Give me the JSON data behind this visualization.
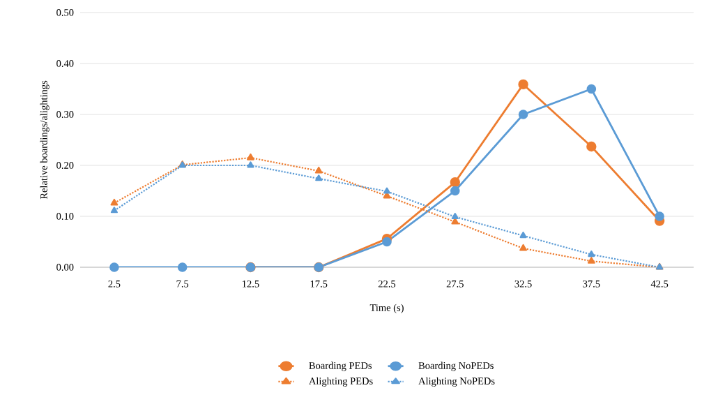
{
  "chart_data": {
    "type": "line",
    "xlabel": "Time (s)",
    "ylabel": "Relative boardings/alightings",
    "categories": [
      "2.5",
      "7.5",
      "12.5",
      "17.5",
      "22.5",
      "27.5",
      "32.5",
      "37.5",
      "42.5"
    ],
    "ylim": [
      0,
      0.5
    ],
    "yticks": [
      {
        "value": 0,
        "label": "0.00"
      },
      {
        "value": 0.1,
        "label": "0.10"
      },
      {
        "value": 0.2,
        "label": "0.20"
      },
      {
        "value": 0.3,
        "label": "0.30"
      },
      {
        "value": 0.4,
        "label": "0.40"
      },
      {
        "value": 0.5,
        "label": "0.50"
      }
    ],
    "grid": "y",
    "legend": "bottom",
    "series": [
      {
        "name": "Boarding PEDs",
        "color": "#ed7d31",
        "marker": "circle",
        "line_style": "solid",
        "values": [
          null,
          null,
          0,
          0,
          0.056,
          0.167,
          0.359,
          0.237,
          0.091
        ]
      },
      {
        "name": "Boarding NoPEDs",
        "color": "#5b9bd5",
        "marker": "circle",
        "line_style": "solid",
        "values": [
          0,
          0,
          0,
          0,
          0.05,
          0.15,
          0.3,
          0.35,
          0.1
        ]
      },
      {
        "name": "Alighting PEDs",
        "color": "#ed7d31",
        "marker": "triangle",
        "line_style": "dotted",
        "values": [
          0.126,
          0.201,
          0.215,
          0.189,
          0.14,
          0.089,
          0.037,
          0.012,
          0
        ]
      },
      {
        "name": "Alighting NoPEDs",
        "color": "#5b9bd5",
        "marker": "triangle",
        "line_style": "dotted",
        "values": [
          0.111,
          0.2,
          0.2,
          0.174,
          0.149,
          0.099,
          0.062,
          0.025,
          0
        ]
      }
    ]
  }
}
